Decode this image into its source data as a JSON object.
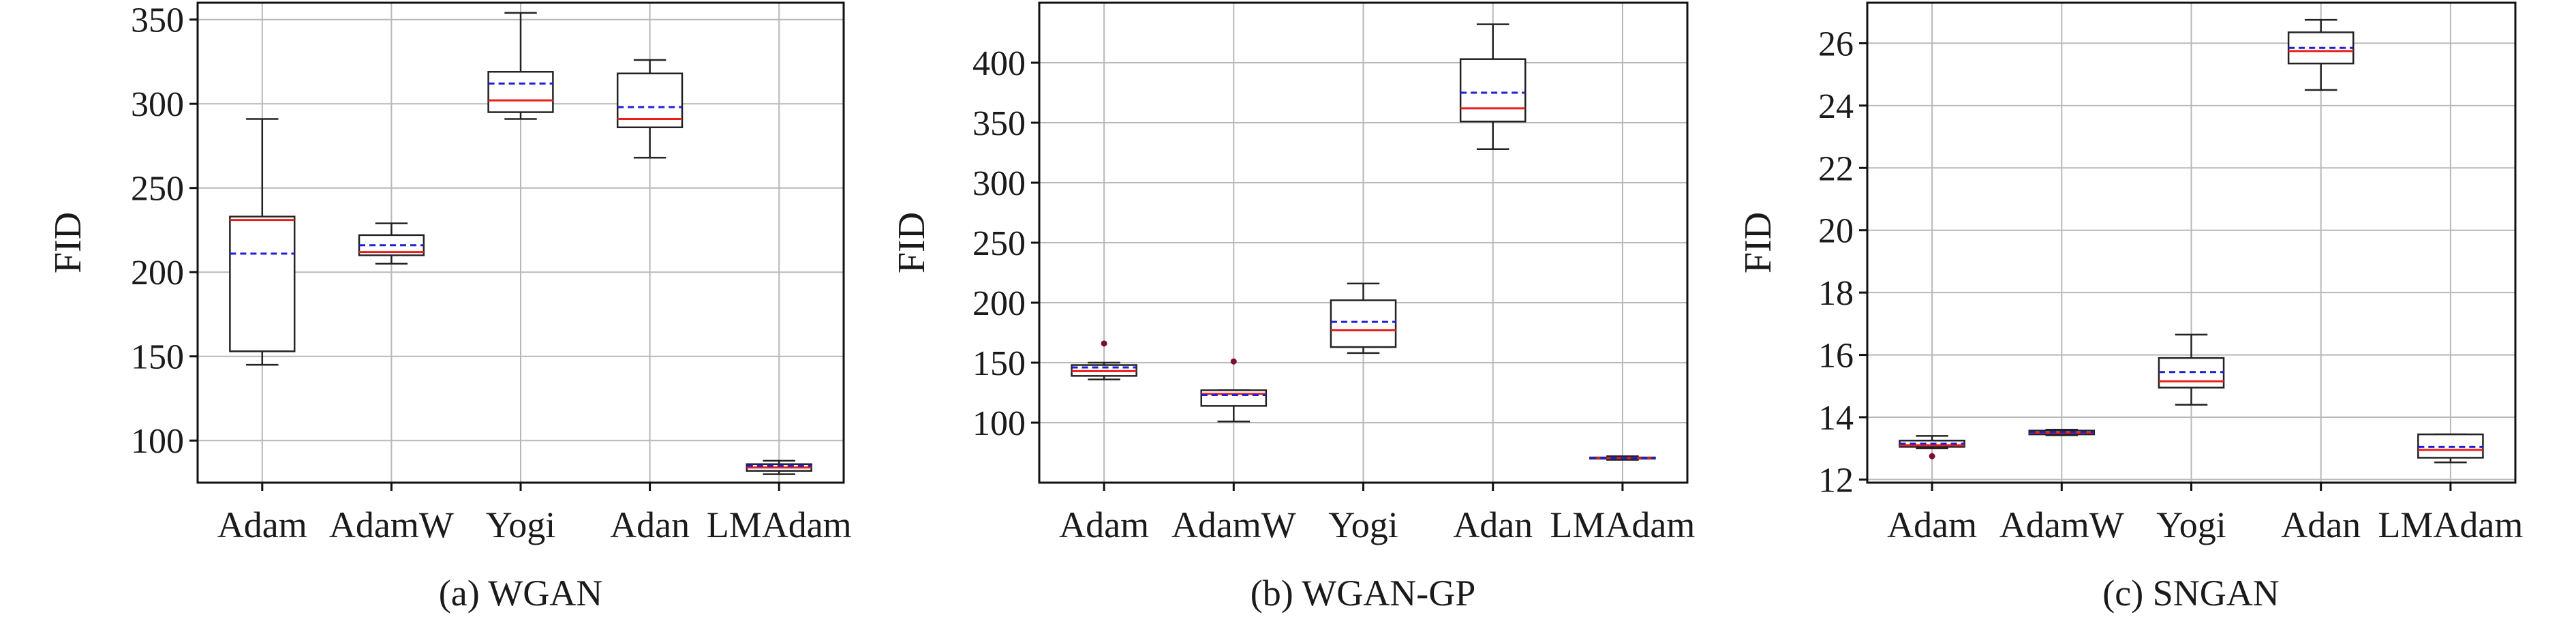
{
  "colors": {
    "median": "#e8201c",
    "mean": "#1f1fd6",
    "box": "#222222",
    "grid": "#b8b8b8",
    "outlier": "#7a1030"
  },
  "chart_data": [
    {
      "type": "box",
      "caption": "(a) WGAN",
      "ylabel": "FID",
      "ylim": [
        75,
        360
      ],
      "yticks": [
        100,
        150,
        200,
        250,
        300,
        350
      ],
      "categories": [
        "Adam",
        "AdamW",
        "Yogi",
        "Adan",
        "LMAdam"
      ],
      "boxes": [
        {
          "name": "Adam",
          "whislo": 145,
          "q1": 153,
          "med": 231,
          "q3": 233,
          "whishi": 291,
          "mean": 211,
          "fliers": []
        },
        {
          "name": "AdamW",
          "whislo": 205,
          "q1": 210,
          "med": 212,
          "q3": 222,
          "whishi": 229,
          "mean": 216,
          "fliers": []
        },
        {
          "name": "Yogi",
          "whislo": 291,
          "q1": 295,
          "med": 302,
          "q3": 319,
          "whishi": 354,
          "mean": 312,
          "fliers": []
        },
        {
          "name": "Adan",
          "whislo": 268,
          "q1": 286,
          "med": 291,
          "q3": 318,
          "whishi": 326,
          "mean": 298,
          "fliers": []
        },
        {
          "name": "LMAdam",
          "whislo": 80,
          "q1": 82,
          "med": 84,
          "q3": 86,
          "whishi": 88,
          "mean": 85,
          "fliers": []
        }
      ]
    },
    {
      "type": "box",
      "caption": "(b) WGAN-GP",
      "ylabel": "FID",
      "ylim": [
        50,
        450
      ],
      "yticks": [
        100,
        150,
        200,
        250,
        300,
        350,
        400
      ],
      "categories": [
        "Adam",
        "AdamW",
        "Yogi",
        "Adan",
        "LMAdam"
      ],
      "boxes": [
        {
          "name": "Adam",
          "whislo": 136,
          "q1": 139,
          "med": 143,
          "q3": 148,
          "whishi": 150,
          "mean": 146,
          "fliers": [
            166
          ]
        },
        {
          "name": "AdamW",
          "whislo": 101,
          "q1": 114,
          "med": 124,
          "q3": 127,
          "whishi": 127,
          "mean": 123,
          "fliers": [
            151
          ]
        },
        {
          "name": "Yogi",
          "whislo": 158,
          "q1": 163,
          "med": 177,
          "q3": 202,
          "whishi": 216,
          "mean": 184,
          "fliers": []
        },
        {
          "name": "Adan",
          "whislo": 328,
          "q1": 351,
          "med": 362,
          "q3": 403,
          "whishi": 432,
          "mean": 375,
          "fliers": []
        },
        {
          "name": "LMAdam",
          "whislo": 69,
          "q1": 70,
          "med": 70.5,
          "q3": 71,
          "whishi": 72,
          "mean": 70.5,
          "fliers": []
        }
      ]
    },
    {
      "type": "box",
      "caption": "(c) SNGAN",
      "ylabel": "FID",
      "ylim": [
        11.9,
        27.3
      ],
      "yticks": [
        12,
        14,
        16,
        18,
        20,
        22,
        24,
        26
      ],
      "categories": [
        "Adam",
        "AdamW",
        "Yogi",
        "Adan",
        "LMAdam"
      ],
      "boxes": [
        {
          "name": "Adam",
          "whislo": 13.0,
          "q1": 13.05,
          "med": 13.1,
          "q3": 13.25,
          "whishi": 13.4,
          "mean": 13.15,
          "fliers": [
            12.75
          ]
        },
        {
          "name": "AdamW",
          "whislo": 13.42,
          "q1": 13.45,
          "med": 13.5,
          "q3": 13.57,
          "whishi": 13.6,
          "mean": 13.52,
          "fliers": []
        },
        {
          "name": "Yogi",
          "whislo": 14.4,
          "q1": 14.95,
          "med": 15.15,
          "q3": 15.9,
          "whishi": 16.65,
          "mean": 15.45,
          "fliers": []
        },
        {
          "name": "Adan",
          "whislo": 24.5,
          "q1": 25.35,
          "med": 25.75,
          "q3": 26.35,
          "whishi": 26.75,
          "mean": 25.85,
          "fliers": []
        },
        {
          "name": "LMAdam",
          "whislo": 12.55,
          "q1": 12.7,
          "med": 12.95,
          "q3": 13.45,
          "whishi": 13.45,
          "mean": 13.05,
          "fliers": []
        }
      ]
    }
  ]
}
